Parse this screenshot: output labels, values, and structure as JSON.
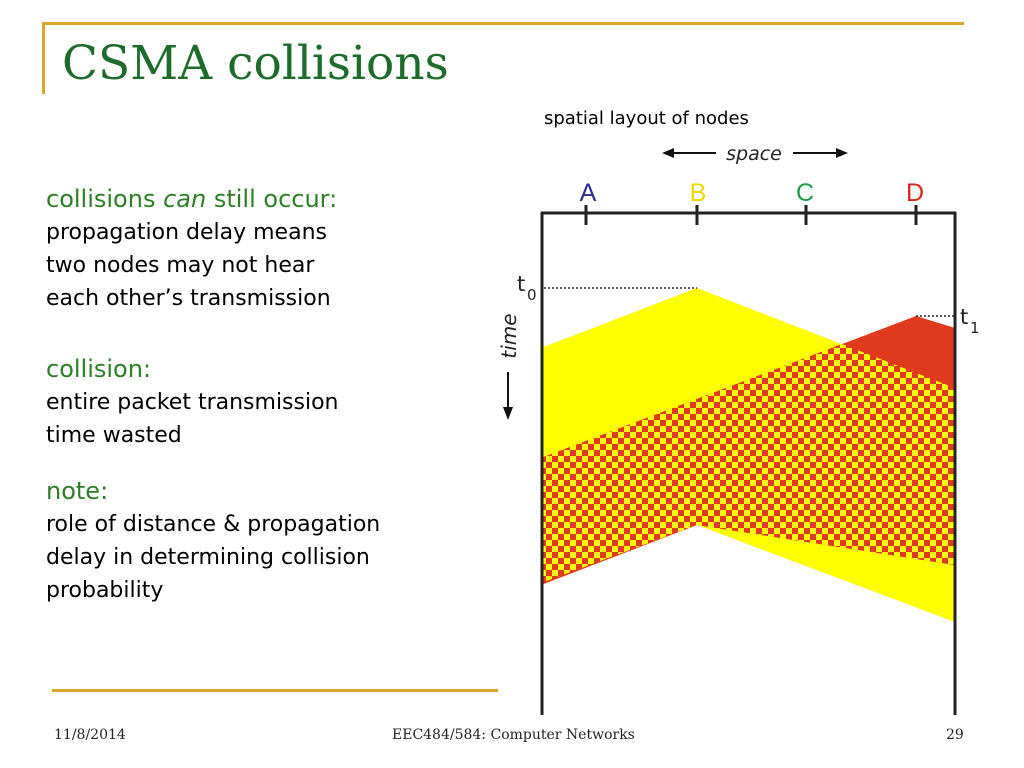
{
  "slide": {
    "title": "CSMA collisions",
    "points": {
      "collisions_prefix": "collisions ",
      "collisions_em": "can",
      "collisions_suffix": " still occur:",
      "collisions_lines": [
        "propagation delay means",
        "two nodes may not hear",
        "each other’s transmission"
      ],
      "collision_heading": "collision:",
      "collision_lines": [
        "entire packet transmission",
        "time wasted"
      ],
      "note_heading": "note:",
      "note_lines": [
        "role of distance & propagation",
        "delay in determining collision",
        "probability"
      ]
    }
  },
  "diagram": {
    "caption": "spatial layout of nodes",
    "space_label": "space",
    "time_label": "time",
    "t0_base": "t",
    "t0_sub": "0",
    "t1_base": "t",
    "t1_sub": "1",
    "nodes": [
      {
        "label": "A",
        "color": "#2b2f8f"
      },
      {
        "label": "B",
        "color": "#f2d600"
      },
      {
        "label": "C",
        "color": "#1f9a4a"
      },
      {
        "label": "D",
        "color": "#d8261c"
      }
    ],
    "colors": {
      "yellow": "#ffff00",
      "red": "#e03a1e"
    }
  },
  "footer": {
    "date": "11/8/2014",
    "course": "EEC484/584: Computer Networks",
    "page": "29"
  }
}
